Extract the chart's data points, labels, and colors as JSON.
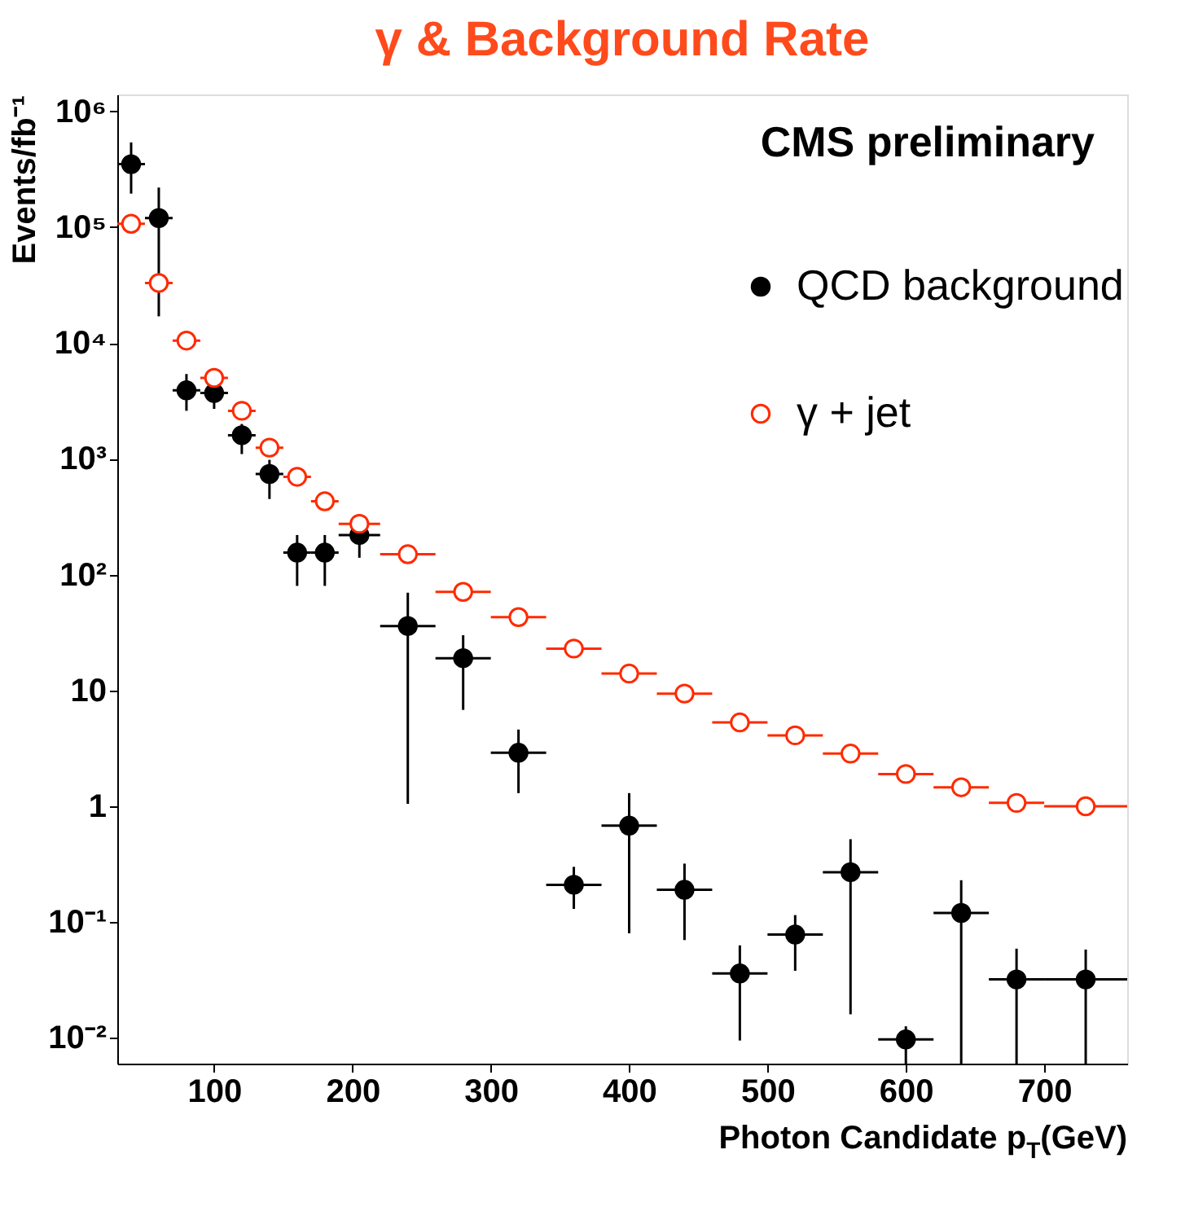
{
  "chart_data": {
    "type": "scatter",
    "title": "γ & Background Rate",
    "xlabel": "Photon Candidate p$_{T}$(GeV)",
    "ylabel": "Events/fb⁻¹",
    "annotations": [
      "CMS preliminary"
    ],
    "x": [
      40,
      60,
      80,
      100,
      120,
      140,
      160,
      180,
      205,
      240,
      280,
      320,
      360,
      400,
      440,
      480,
      520,
      560,
      600,
      640,
      680,
      730
    ],
    "series": [
      {
        "name": "QCD background",
        "color": "#000000",
        "marker": "circle",
        "values": [
          350000,
          120000,
          3900,
          3700,
          1600,
          740,
          155,
          155,
          220,
          36,
          19,
          2.9,
          0.21,
          0.68,
          0.19,
          0.036,
          0.078,
          0.27,
          0.0097,
          0.12,
          0.032,
          0.032
        ],
        "errors": [
          [
            195000,
            540000
          ],
          [
            17000,
            220000
          ],
          [
            2600,
            5400
          ],
          [
            2700,
            4900
          ],
          [
            1100,
            2000
          ],
          [
            450,
            980
          ],
          [
            80,
            220
          ],
          [
            80,
            220
          ],
          [
            140,
            300
          ],
          [
            1.05,
            70
          ],
          [
            6.8,
            30
          ],
          [
            1.3,
            4.6
          ],
          [
            0.13,
            0.3
          ],
          [
            0.08,
            1.3
          ],
          [
            0.07,
            0.32
          ],
          [
            0.0095,
            0.063
          ],
          [
            0.038,
            0.115
          ],
          [
            0.016,
            0.52
          ],
          [
            0.006,
            0.0126
          ],
          [
            0.006,
            0.23
          ],
          [
            0.006,
            0.059
          ],
          [
            0.006,
            0.058
          ]
        ],
        "xerrors": [
          10,
          10,
          10,
          10,
          10,
          10,
          10,
          10,
          15,
          20,
          20,
          20,
          20,
          20,
          20,
          20,
          20,
          20,
          20,
          20,
          20,
          30
        ]
      },
      {
        "name": "γ + jet",
        "color": "#ff2a00",
        "marker": "circle",
        "values": [
          107000,
          33000,
          10500,
          5000,
          2600,
          1250,
          700,
          430,
          275,
          150,
          71,
          43,
          23,
          14,
          9.4,
          5.3,
          4.1,
          2.85,
          1.9,
          1.46,
          1.07,
          1.0
        ],
        "xerrors": [
          10,
          10,
          10,
          10,
          10,
          10,
          10,
          10,
          15,
          20,
          20,
          20,
          20,
          20,
          20,
          20,
          20,
          20,
          20,
          20,
          20,
          30
        ]
      }
    ],
    "xlim": [
      30,
      760
    ],
    "xticks": [
      100,
      200,
      300,
      400,
      500,
      600,
      700
    ],
    "ylim": [
      0.006,
      1400000
    ],
    "log": "y",
    "yticks": [
      {
        "value": 0.01,
        "label": "10⁻²"
      },
      {
        "value": 0.1,
        "label": "10⁻¹"
      },
      1,
      10,
      {
        "value": 100,
        "label": "10²"
      },
      {
        "value": 1000,
        "label": "10³"
      },
      {
        "value": 10000,
        "label": "10⁴"
      },
      {
        "value": 100000,
        "label": "10⁵"
      },
      {
        "value": 1000000,
        "label": "10⁶"
      }
    ],
    "grid": false,
    "legend": "top right"
  }
}
